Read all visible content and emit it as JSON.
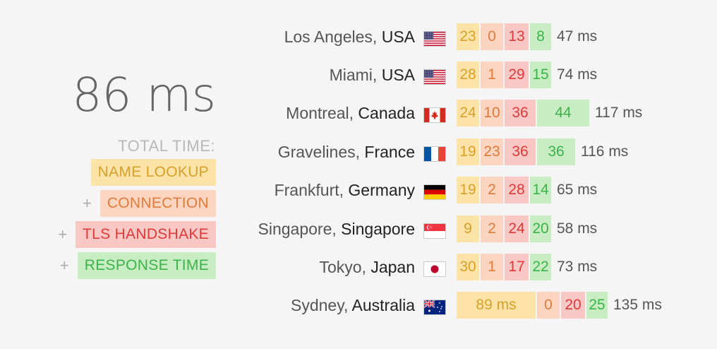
{
  "summary": {
    "total": "86 ms",
    "total_label": "TOTAL TIME:",
    "legend": {
      "name_lookup": "NAME LOOKUP",
      "connection": "CONNECTION",
      "tls_handshake": "TLS HANDSHAKE",
      "response_time": "RESPONSE TIME",
      "plus": "+"
    }
  },
  "colors": {
    "name_lookup_bg": "#fde3a7",
    "connection_bg": "#fcd5c0",
    "tls_bg": "#f9c7c4",
    "response_bg": "#c9edc3"
  },
  "locations": [
    {
      "city": "Los Angeles",
      "sep": ", ",
      "country": "USA",
      "flag": "us-flag-icon",
      "name_lookup": "23",
      "connection": "0",
      "tls": "13",
      "response": "8",
      "total": "47 ms"
    },
    {
      "city": "Miami",
      "sep": ", ",
      "country": "USA",
      "flag": "us-flag-icon",
      "name_lookup": "28",
      "connection": "1",
      "tls": "29",
      "response": "15",
      "total": "74 ms"
    },
    {
      "city": "Montreal",
      "sep": ", ",
      "country": "Canada",
      "flag": "canada-flag-icon",
      "name_lookup": "24",
      "connection": "10",
      "tls": "36",
      "response": "44",
      "total": "117 ms"
    },
    {
      "city": "Gravelines",
      "sep": ", ",
      "country": "France",
      "flag": "france-flag-icon",
      "name_lookup": "19",
      "connection": "23",
      "tls": "36",
      "response": "36",
      "total": "116 ms"
    },
    {
      "city": "Frankfurt",
      "sep": ", ",
      "country": "Germany",
      "flag": "germany-flag-icon",
      "name_lookup": "19",
      "connection": "2",
      "tls": "28",
      "response": "14",
      "total": "65 ms"
    },
    {
      "city": "Singapore",
      "sep": ", ",
      "country": "Singapore",
      "flag": "singapore-flag-icon",
      "name_lookup": "9",
      "connection": "2",
      "tls": "24",
      "response": "20",
      "total": "58 ms"
    },
    {
      "city": "Tokyo",
      "sep": ", ",
      "country": "Japan",
      "flag": "japan-flag-icon",
      "name_lookup": "30",
      "connection": "1",
      "tls": "17",
      "response": "22",
      "total": "73 ms"
    },
    {
      "city": "Sydney",
      "sep": ", ",
      "country": "Australia",
      "flag": "australia-flag-icon",
      "name_lookup": "89 ms",
      "connection": "0",
      "tls": "20",
      "response": "25",
      "total": "135 ms"
    }
  ]
}
